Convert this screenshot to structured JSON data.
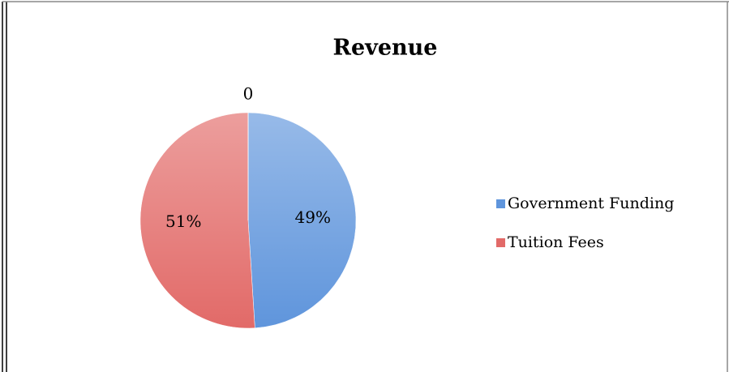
{
  "chart_data": {
    "type": "pie",
    "title": "Revenue",
    "categories": [
      "Government Funding",
      "Tuition Fees",
      null
    ],
    "values": [
      49,
      51,
      0
    ],
    "value_labels": [
      "49%",
      "51%",
      "0"
    ],
    "colors": [
      "#5f95dc",
      "#e26a68",
      "#9bbb59"
    ]
  }
}
